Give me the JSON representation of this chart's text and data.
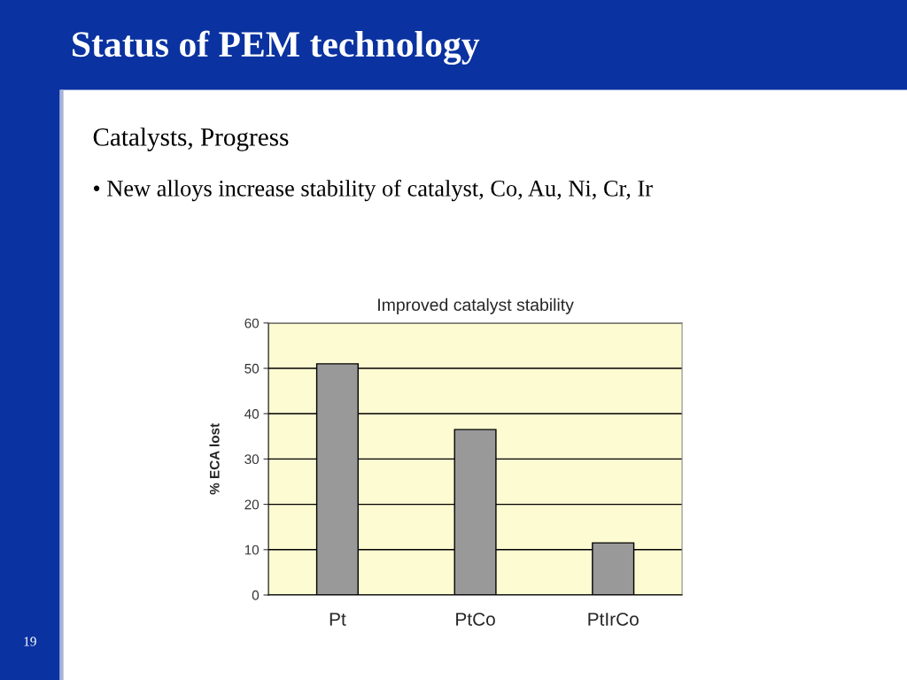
{
  "chart_data": {
    "type": "bar",
    "title": "Improved catalyst stability",
    "ylabel": "% ECA lost",
    "categories": [
      "Pt",
      "PtCo",
      "PtIrCo"
    ],
    "values": [
      51,
      36.5,
      11.5
    ],
    "color": "#999999",
    "ylim": [
      0,
      60
    ],
    "yticks": [
      0,
      10,
      20,
      30,
      40,
      50,
      60
    ],
    "grid": "y",
    "annotations": [
      "Status of PEM technology",
      "Catalysts, Progress",
      "• New alloys increase stability of catalyst, Co, Au, Ni, Cr, Ir",
      "19"
    ]
  }
}
